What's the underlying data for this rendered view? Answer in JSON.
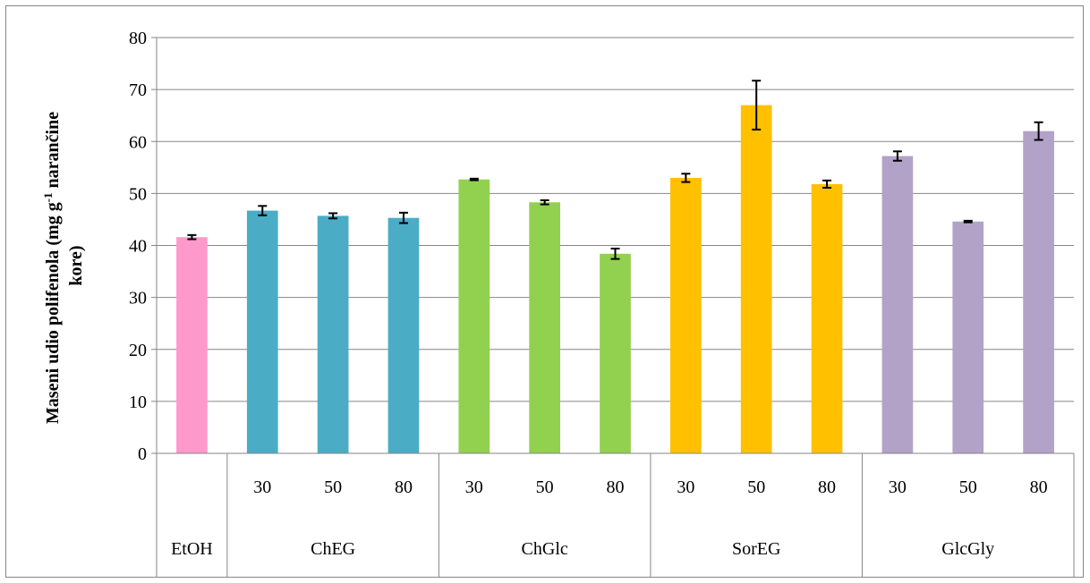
{
  "chart_data": {
    "type": "bar",
    "title": "",
    "ylabel_line1": "Maseni udio polifenola (mg g",
    "ylabel_sup": "-1",
    "ylabel_line1_end": " narančine",
    "ylabel_line2": "kore)",
    "xlabel": "",
    "ylim": [
      0,
      80
    ],
    "y_ticks": [
      0,
      10,
      20,
      30,
      40,
      50,
      60,
      70,
      80
    ],
    "grid": true,
    "groups": [
      {
        "name": "EtOH",
        "color": "#FF99CC",
        "bars": [
          {
            "label": "",
            "value": 41.6,
            "error": 0.4
          }
        ]
      },
      {
        "name": "ChEG",
        "color": "#4BACC6",
        "bars": [
          {
            "label": "30",
            "value": 46.7,
            "error": 0.9
          },
          {
            "label": "50",
            "value": 45.7,
            "error": 0.5
          },
          {
            "label": "80",
            "value": 45.3,
            "error": 1.0
          }
        ]
      },
      {
        "name": "ChGlc",
        "color": "#92D050",
        "bars": [
          {
            "label": "30",
            "value": 52.7,
            "error": 0.15
          },
          {
            "label": "50",
            "value": 48.3,
            "error": 0.4
          },
          {
            "label": "80",
            "value": 38.4,
            "error": 1.0
          }
        ]
      },
      {
        "name": "SorEG",
        "color": "#FFC000",
        "bars": [
          {
            "label": "30",
            "value": 53.0,
            "error": 0.8
          },
          {
            "label": "50",
            "value": 67.0,
            "error": 4.7
          },
          {
            "label": "80",
            "value": 51.8,
            "error": 0.7
          }
        ]
      },
      {
        "name": "GlcGly",
        "color": "#B3A2C7",
        "bars": [
          {
            "label": "30",
            "value": 57.2,
            "error": 0.9
          },
          {
            "label": "50",
            "value": 44.6,
            "error": 0.15
          },
          {
            "label": "80",
            "value": 62.0,
            "error": 1.7
          }
        ]
      }
    ]
  }
}
